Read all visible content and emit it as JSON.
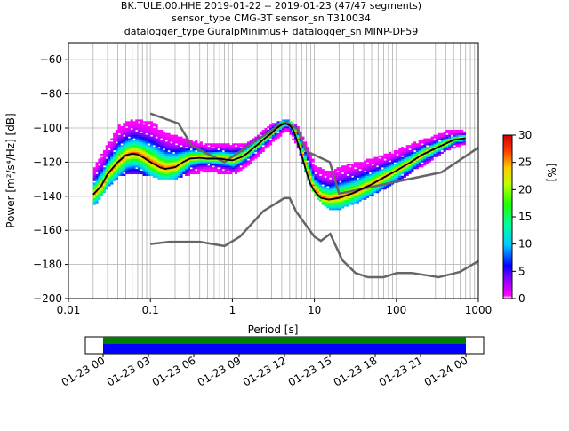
{
  "header": {
    "title_lines": [
      "BK.TULE.00.HHE   2019-01-22 -- 2019-01-23  (47/47 segments)",
      "sensor_type CMG-3T sensor_sn T310034",
      "datalogger_type GuralpMinimus+ datalogger_sn MINP-DF59"
    ]
  },
  "chart_data": [
    {
      "type": "heatmap",
      "title_lines": [
        "BK.TULE.00.HHE   2019-01-22 -- 2019-01-23  (47/47 segments)",
        "sensor_type CMG-3T sensor_sn T310034",
        "datalogger_type GuralpMinimus+ datalogger_sn MINP-DF59"
      ],
      "xlabel": "Period [s]",
      "ylabel": "Power [m²/s⁴/Hz] [dB]",
      "x_scale": "log",
      "xlim": [
        0.01,
        1000
      ],
      "ylim": [
        -200,
        -50
      ],
      "x_ticks": [
        0.01,
        0.1,
        1,
        10,
        100,
        1000
      ],
      "x_tick_labels": [
        "0.01",
        "0.1",
        "1",
        "10",
        "100",
        "1000"
      ],
      "y_ticks": [
        -200,
        -180,
        -160,
        -140,
        -120,
        -100,
        -80,
        -60
      ],
      "y_tick_labels": [
        "−200",
        "−180",
        "−160",
        "−140",
        "−120",
        "−100",
        "−80",
        "−60"
      ],
      "grid": true,
      "colorbar": {
        "label": "[%]",
        "range": [
          0,
          30
        ],
        "ticks": [
          0,
          5,
          10,
          15,
          20,
          25,
          30
        ],
        "tick_labels": [
          "0",
          "5",
          "10",
          "15",
          "20",
          "25",
          "30"
        ]
      },
      "mean_psd_curve": {
        "period": [
          0.02,
          0.025,
          0.03,
          0.04,
          0.05,
          0.06,
          0.07,
          0.08,
          0.1,
          0.13,
          0.15,
          0.2,
          0.25,
          0.3,
          0.4,
          0.5,
          0.7,
          1.0,
          1.3,
          1.5,
          2,
          2.5,
          3,
          3.5,
          4,
          4.5,
          5,
          5.5,
          6,
          7,
          8,
          9,
          10,
          12,
          15,
          20,
          30,
          50,
          70,
          100,
          150,
          200,
          300,
          500,
          700
        ],
        "db": [
          -139,
          -134,
          -127,
          -120,
          -116,
          -115,
          -115.5,
          -117,
          -120,
          -123,
          -124,
          -123,
          -120,
          -118,
          -117.5,
          -118,
          -118,
          -119,
          -117,
          -115,
          -110,
          -106,
          -103,
          -100,
          -98,
          -97.5,
          -98.5,
          -101,
          -106,
          -116,
          -126,
          -133,
          -137,
          -141,
          -142,
          -141,
          -138,
          -133,
          -129,
          -125,
          -120,
          -116,
          -112,
          -107,
          -106
        ]
      },
      "noise_models": [
        {
          "period": [
            0.1,
            0.17,
            0.4,
            0.8,
            1.24,
            2.4,
            4.3,
            5.0,
            6.0,
            10.0,
            12.0,
            15.6,
            21.9,
            31.6,
            45.0,
            70.0,
            101,
            154,
            328,
            600,
            1000
          ],
          "db": [
            -168,
            -166.7,
            -166.7,
            -169.2,
            -163.7,
            -148.6,
            -141.1,
            -141.1,
            -149,
            -163.8,
            -166.2,
            -162.1,
            -177.5,
            -185,
            -187.5,
            -187.5,
            -185,
            -185,
            -187.5,
            -184.4,
            -178
          ]
        },
        {
          "period": [
            0.1,
            0.22,
            0.32,
            0.8,
            3.8,
            4.6,
            6.3,
            7.9,
            15.4,
            20.0,
            354.8,
            1000
          ],
          "db": [
            -91.5,
            -97.4,
            -110.5,
            -120,
            -98,
            -96.5,
            -101,
            -113.5,
            -120,
            -138.5,
            -126,
            -111.5
          ]
        }
      ],
      "psd_density_extent": {
        "period_range": [
          0.02,
          700
        ],
        "db_envelope": [
          {
            "period": 0.02,
            "low": -145,
            "high": -124
          },
          {
            "period": 0.03,
            "low": -134,
            "high": -110
          },
          {
            "period": 0.04,
            "low": -128,
            "high": -100
          },
          {
            "period": 0.06,
            "low": -126,
            "high": -96
          },
          {
            "period": 0.1,
            "low": -128,
            "high": -98
          },
          {
            "period": 0.15,
            "low": -130,
            "high": -104
          },
          {
            "period": 0.2,
            "low": -129,
            "high": -106
          },
          {
            "period": 0.3,
            "low": -127,
            "high": -108
          },
          {
            "period": 0.5,
            "low": -125,
            "high": -111
          },
          {
            "period": 0.8,
            "low": -127,
            "high": -110
          },
          {
            "period": 1.0,
            "low": -127,
            "high": -110
          },
          {
            "period": 1.5,
            "low": -122,
            "high": -110
          },
          {
            "period": 2.0,
            "low": -116,
            "high": -105
          },
          {
            "period": 3.0,
            "low": -108,
            "high": -99
          },
          {
            "period": 4.5,
            "low": -101,
            "high": -96
          },
          {
            "period": 6.0,
            "low": -110,
            "high": -100
          },
          {
            "period": 8.0,
            "low": -130,
            "high": -112
          },
          {
            "period": 10,
            "low": -140,
            "high": -124
          },
          {
            "period": 15,
            "low": -148,
            "high": -127
          },
          {
            "period": 20,
            "low": -147,
            "high": -124
          },
          {
            "period": 30,
            "low": -144,
            "high": -122
          },
          {
            "period": 50,
            "low": -139,
            "high": -119
          },
          {
            "period": 100,
            "low": -131,
            "high": -114
          },
          {
            "period": 200,
            "low": -122,
            "high": -108
          },
          {
            "period": 400,
            "low": -113,
            "high": -103
          },
          {
            "period": 700,
            "low": -109,
            "high": -102
          }
        ]
      }
    },
    {
      "type": "timeline",
      "description_values": "data coverage bar",
      "x_ticks": [
        "01-23 00",
        "01-23 03",
        "01-23 06",
        "01-23 09",
        "01-23 12",
        "01-23 15",
        "01-23 18",
        "01-23 21",
        "01-24 00"
      ],
      "coverage": {
        "start": "01-23 00",
        "end": "01-24 00"
      },
      "colors": {
        "coverage_top": "#008000",
        "coverage_bottom": "#0000ff"
      }
    }
  ]
}
